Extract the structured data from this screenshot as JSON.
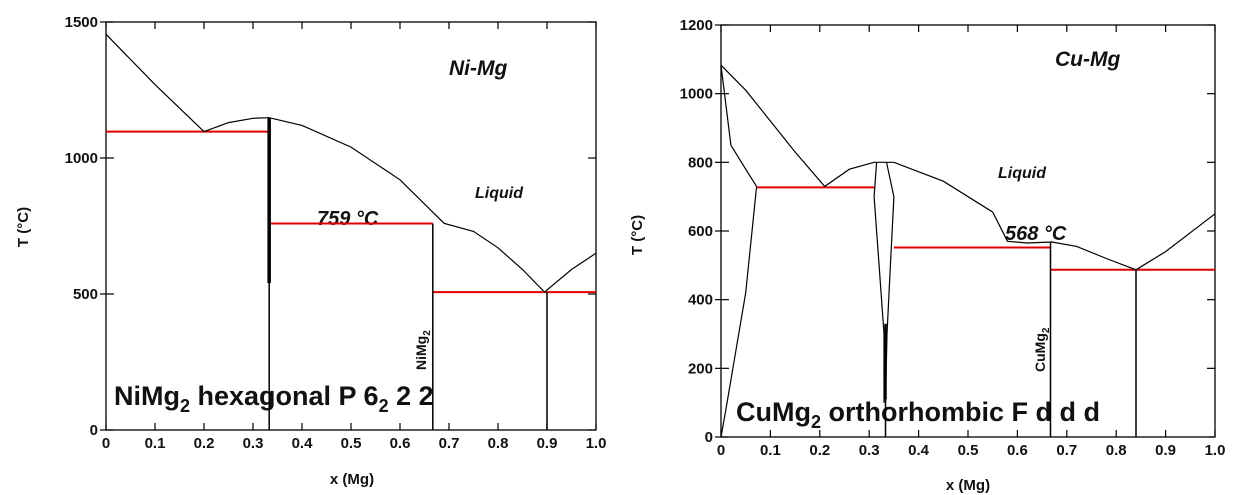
{
  "chart_data": [
    {
      "type": "line",
      "title": "Ni-Mg",
      "xlabel": "x (Mg)",
      "ylabel": "T (°C)",
      "xlim": [
        0,
        1.0
      ],
      "ylim": [
        0,
        1500
      ],
      "x_ticks": [
        "0",
        "0.1",
        "0.2",
        "0.3",
        "0.4",
        "0.5",
        "0.6",
        "0.7",
        "0.8",
        "0.9",
        "1.0"
      ],
      "y_ticks": [
        "0",
        "500",
        "1000",
        "1500"
      ],
      "region_label": "Liquid",
      "eutectic_label": "759 °C",
      "compound_label": {
        "base": "NiMg",
        "sub": "2"
      },
      "phase_info": {
        "part1": "NiMg",
        "sub1": "2",
        "part2": " hexagonal P 6",
        "sub2": "2",
        "part3": " 2 2"
      },
      "series": [
        {
          "kind": "liquidus",
          "points": [
            [
              0,
              1455
            ],
            [
              0.1,
              1270
            ],
            [
              0.2,
              1097
            ],
            [
              0.25,
              1130
            ],
            [
              0.3,
              1146
            ],
            [
              0.333,
              1148
            ],
            [
              0.4,
              1120
            ],
            [
              0.5,
              1040
            ],
            [
              0.6,
              920
            ],
            [
              0.69,
              760
            ],
            [
              0.75,
              730
            ],
            [
              0.8,
              670
            ],
            [
              0.85,
              590
            ],
            [
              0.895,
              507
            ],
            [
              0.95,
              590
            ],
            [
              1.0,
              650
            ]
          ]
        },
        {
          "kind": "compound",
          "points": [
            [
              0.333,
              0
            ],
            [
              0.333,
              1148
            ]
          ]
        },
        {
          "kind": "compound",
          "points": [
            [
              0.667,
              0
            ],
            [
              0.667,
              759
            ]
          ]
        },
        {
          "kind": "compound",
          "points": [
            [
              0.9,
              0
            ],
            [
              0.9,
              507
            ]
          ]
        }
      ],
      "invariants": [
        {
          "T": 1097,
          "x_range": [
            0,
            0.333
          ]
        },
        {
          "T": 759,
          "x_range": [
            0.333,
            0.667
          ]
        },
        {
          "T": 507,
          "x_range": [
            0.667,
            1.0
          ]
        }
      ],
      "colors": {
        "phase_line": "#000000",
        "invariant": "#e00000"
      }
    },
    {
      "type": "line",
      "title": "Cu-Mg",
      "xlabel": "x (Mg)",
      "ylabel": "T (°C)",
      "xlim": [
        0,
        1.0
      ],
      "ylim": [
        0,
        1200
      ],
      "x_ticks": [
        "0",
        "0.1",
        "0.2",
        "0.3",
        "0.4",
        "0.5",
        "0.6",
        "0.7",
        "0.8",
        "0.9",
        "1.0"
      ],
      "y_ticks": [
        "0",
        "200",
        "400",
        "600",
        "800",
        "1000",
        "1200"
      ],
      "region_label": "Liquid",
      "eutectic_label": "568 °C",
      "compound_label": {
        "base": "CuMg",
        "sub": "2"
      },
      "phase_info": {
        "part1": "CuMg",
        "sub1": "2",
        "part2": " orthorhombic F d d d",
        "sub2": "",
        "part3": ""
      },
      "series": [
        {
          "kind": "liquidus",
          "points": [
            [
              0,
              1083
            ],
            [
              0.05,
              1010
            ],
            [
              0.1,
              920
            ],
            [
              0.15,
              830
            ],
            [
              0.21,
              730
            ],
            [
              0.26,
              780
            ],
            [
              0.31,
              800
            ],
            [
              0.35,
              800
            ],
            [
              0.45,
              745
            ],
            [
              0.55,
              655
            ],
            [
              0.58,
              570
            ],
            [
              0.62,
              565
            ],
            [
              0.67,
              568
            ],
            [
              0.72,
              555
            ],
            [
              0.78,
              520
            ],
            [
              0.84,
              487
            ],
            [
              0.9,
              540
            ],
            [
              1.0,
              650
            ]
          ]
        },
        {
          "kind": "solvus",
          "points": [
            [
              0,
              1083
            ],
            [
              0.02,
              850
            ],
            [
              0.05,
              780
            ],
            [
              0.072,
              730
            ]
          ]
        },
        {
          "kind": "solvus",
          "points": [
            [
              0.072,
              730
            ],
            [
              0.05,
              420
            ],
            [
              0.03,
              250
            ],
            [
              0.01,
              80
            ],
            [
              0,
              0
            ]
          ]
        },
        {
          "kind": "solvus",
          "points": [
            [
              0.315,
              800
            ],
            [
              0.31,
              700
            ],
            [
              0.32,
              500
            ],
            [
              0.33,
              300
            ],
            [
              0.33,
              100
            ]
          ]
        },
        {
          "kind": "solvus",
          "points": [
            [
              0.335,
              800
            ],
            [
              0.35,
              700
            ],
            [
              0.343,
              500
            ],
            [
              0.336,
              300
            ],
            [
              0.333,
              100
            ]
          ]
        },
        {
          "kind": "compound",
          "points": [
            [
              0.333,
              0
            ],
            [
              0.333,
              110
            ]
          ]
        },
        {
          "kind": "compound",
          "points": [
            [
              0.667,
              0
            ],
            [
              0.667,
              568
            ]
          ]
        },
        {
          "kind": "compound",
          "points": [
            [
              0.84,
              0
            ],
            [
              0.84,
              487
            ]
          ]
        }
      ],
      "invariants": [
        {
          "T": 727,
          "x_range": [
            0.072,
            0.31
          ]
        },
        {
          "T": 552,
          "x_range": [
            0.35,
            0.667
          ]
        },
        {
          "T": 487,
          "x_range": [
            0.667,
            1.0
          ]
        }
      ],
      "colors": {
        "phase_line": "#000000",
        "invariant": "#e00000"
      }
    }
  ]
}
